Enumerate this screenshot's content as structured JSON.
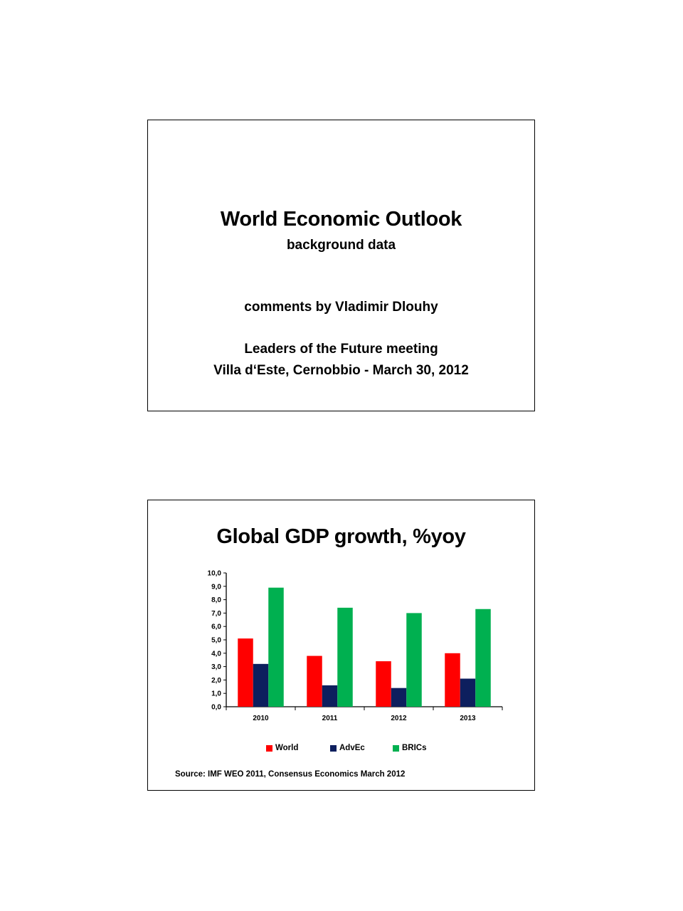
{
  "slide1": {
    "title": "World Economic Outlook",
    "subtitle": "background data",
    "comments": "comments by Vladimir Dlouhy",
    "meeting": "Leaders of the Future meeting",
    "venue": "Villa d‘Este, Cernobbio - March 30, 2012"
  },
  "slide2": {
    "title": "Global GDP growth, %yoy",
    "source": "Source: IMF WEO 2011, Consensus Economics March 2012"
  },
  "chart_data": {
    "type": "bar",
    "title": "Global GDP growth, %yoy",
    "categories": [
      "2010",
      "2011",
      "2012",
      "2013"
    ],
    "series": [
      {
        "name": "World",
        "color": "#ff0000",
        "values": [
          5.1,
          3.8,
          3.4,
          4.0
        ]
      },
      {
        "name": "AdvEc",
        "color": "#0d1f5e",
        "values": [
          3.2,
          1.6,
          1.4,
          2.1
        ]
      },
      {
        "name": "BRICs",
        "color": "#00b050",
        "values": [
          8.9,
          7.4,
          7.0,
          7.3
        ]
      }
    ],
    "ylim": [
      0,
      10
    ],
    "yticks": [
      "0,0",
      "1,0",
      "2,0",
      "3,0",
      "4,0",
      "5,0",
      "6,0",
      "7,0",
      "8,0",
      "9,0",
      "10,0"
    ],
    "xlabel": "",
    "ylabel": "",
    "grid": false,
    "legend": "bottom"
  }
}
